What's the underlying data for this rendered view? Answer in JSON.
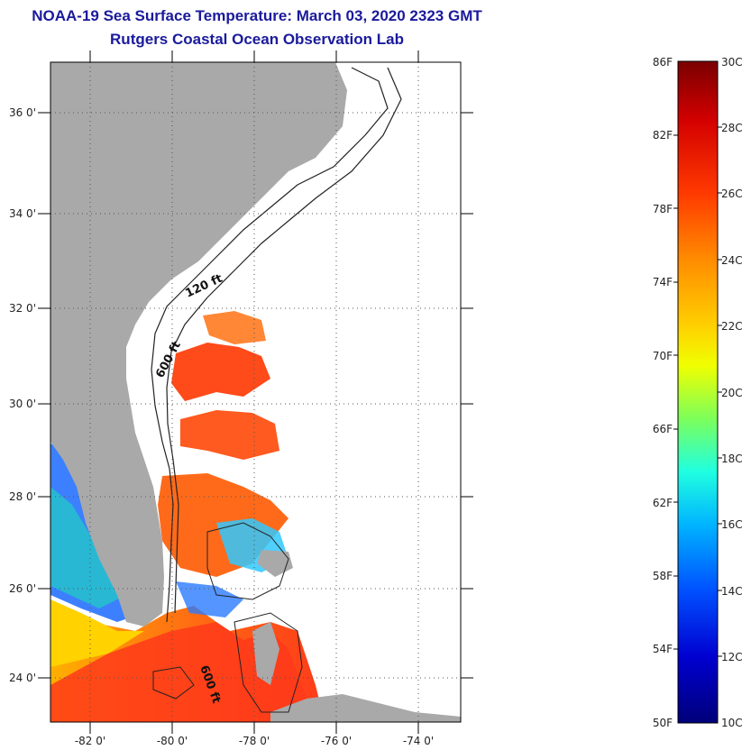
{
  "header": {
    "title": "NOAA-19 Sea Surface Temperature:  March 03, 2020 2323 GMT",
    "subtitle": "Rutgers Coastal Ocean Observation Lab"
  },
  "map": {
    "x_ticks": [
      "-82 0'",
      "-80 0'",
      "-78 0'",
      "-76 0'",
      "-74 0'"
    ],
    "y_ticks": [
      "36 0'",
      "34 0'",
      "32 0'",
      "30 0'",
      "28 0'",
      "26 0'",
      "24 0'"
    ],
    "contour_labels": [
      "120 ft",
      "600 ft",
      "600 ft"
    ],
    "colors": {
      "land": "#a9a9a9",
      "no_data": "#ffffff",
      "grid": "#555555"
    }
  },
  "colorbar": {
    "fahrenheit_labels": [
      "86F",
      "82F",
      "78F",
      "74F",
      "70F",
      "66F",
      "62F",
      "58F",
      "54F",
      "50F"
    ],
    "celsius_labels": [
      "30C",
      "28C",
      "26C",
      "24C",
      "22C",
      "20C",
      "18C",
      "16C",
      "14C",
      "12C",
      "10C"
    ],
    "gradient_stops": [
      "#7a0000",
      "#d40000",
      "#ff3a00",
      "#ff8c00",
      "#ffd000",
      "#f0ff00",
      "#7dff5a",
      "#20ffe0",
      "#00b4ff",
      "#0050ff",
      "#0000d0",
      "#00007a"
    ]
  }
}
